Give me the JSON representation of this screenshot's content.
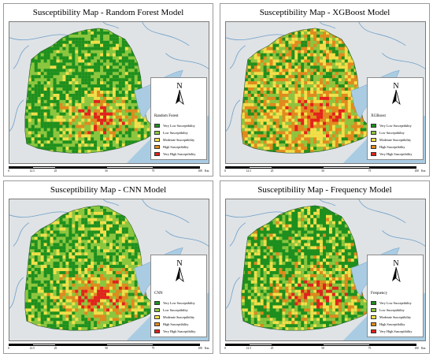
{
  "panels": [
    {
      "title": "Susceptibility Map - Random Forest Model",
      "model": "Random Forest",
      "pattern": "rf"
    },
    {
      "title": "Susceptibility Map - XGBoost Model",
      "model": "XGBoost",
      "pattern": "xgb"
    },
    {
      "title": "Susceptibility Map - CNN Model",
      "model": "CNN",
      "pattern": "cnn"
    },
    {
      "title": "Susceptibility Map - Frequency Model",
      "model": "Frequency",
      "pattern": "freq"
    }
  ],
  "north_label": "N",
  "legend_classes": [
    {
      "label": "Very Low Susceptibility",
      "color": "#1e8f1e"
    },
    {
      "label": "Low Susceptibility",
      "color": "#8cc63f"
    },
    {
      "label": "Moderate Susceptibility",
      "color": "#f2e04a"
    },
    {
      "label": "High Susceptibility",
      "color": "#e08a1e"
    },
    {
      "label": "Very High Susceptibility",
      "color": "#e3211c"
    }
  ],
  "scale": {
    "ticks": [
      "0",
      "12.5",
      "25",
      "50",
      "75",
      "100"
    ],
    "unit": "Km"
  },
  "colors": {
    "water": "#a9cce3",
    "basemap": "#dfe3e6",
    "river": "#6f9fc7"
  }
}
